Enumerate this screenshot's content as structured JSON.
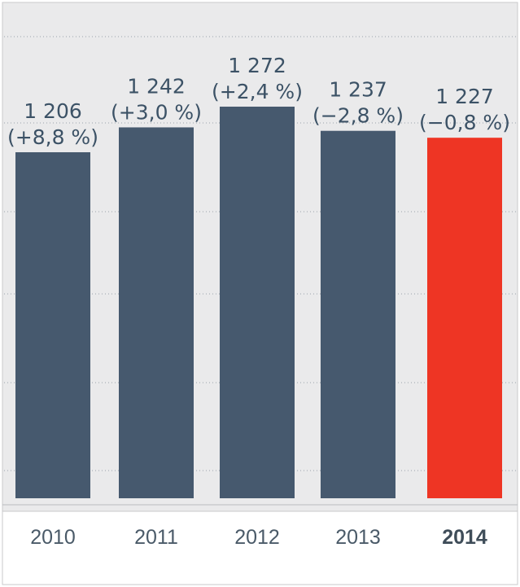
{
  "chart_data": {
    "type": "bar",
    "title": "",
    "xlabel": "",
    "ylabel": "",
    "categories": [
      "2010",
      "2011",
      "2012",
      "2013",
      "2014"
    ],
    "values": [
      1206,
      1242,
      1272,
      1237,
      1227
    ],
    "value_labels": [
      "1 206",
      "1 242",
      "1 272",
      "1 237",
      "1 227"
    ],
    "change_labels": [
      "(+8,8 %)",
      "(+3,0 %)",
      "(+2,4 %)",
      "(−2,8 %)",
      "(−0,8 %)"
    ],
    "highlight_category": "2014",
    "colors": {
      "bar": "#46596e",
      "highlight": "#ee3524",
      "plot_background": "#eaeaeb",
      "axis_background": "#ffffff",
      "label": "#3c5266"
    },
    "grid": true
  }
}
